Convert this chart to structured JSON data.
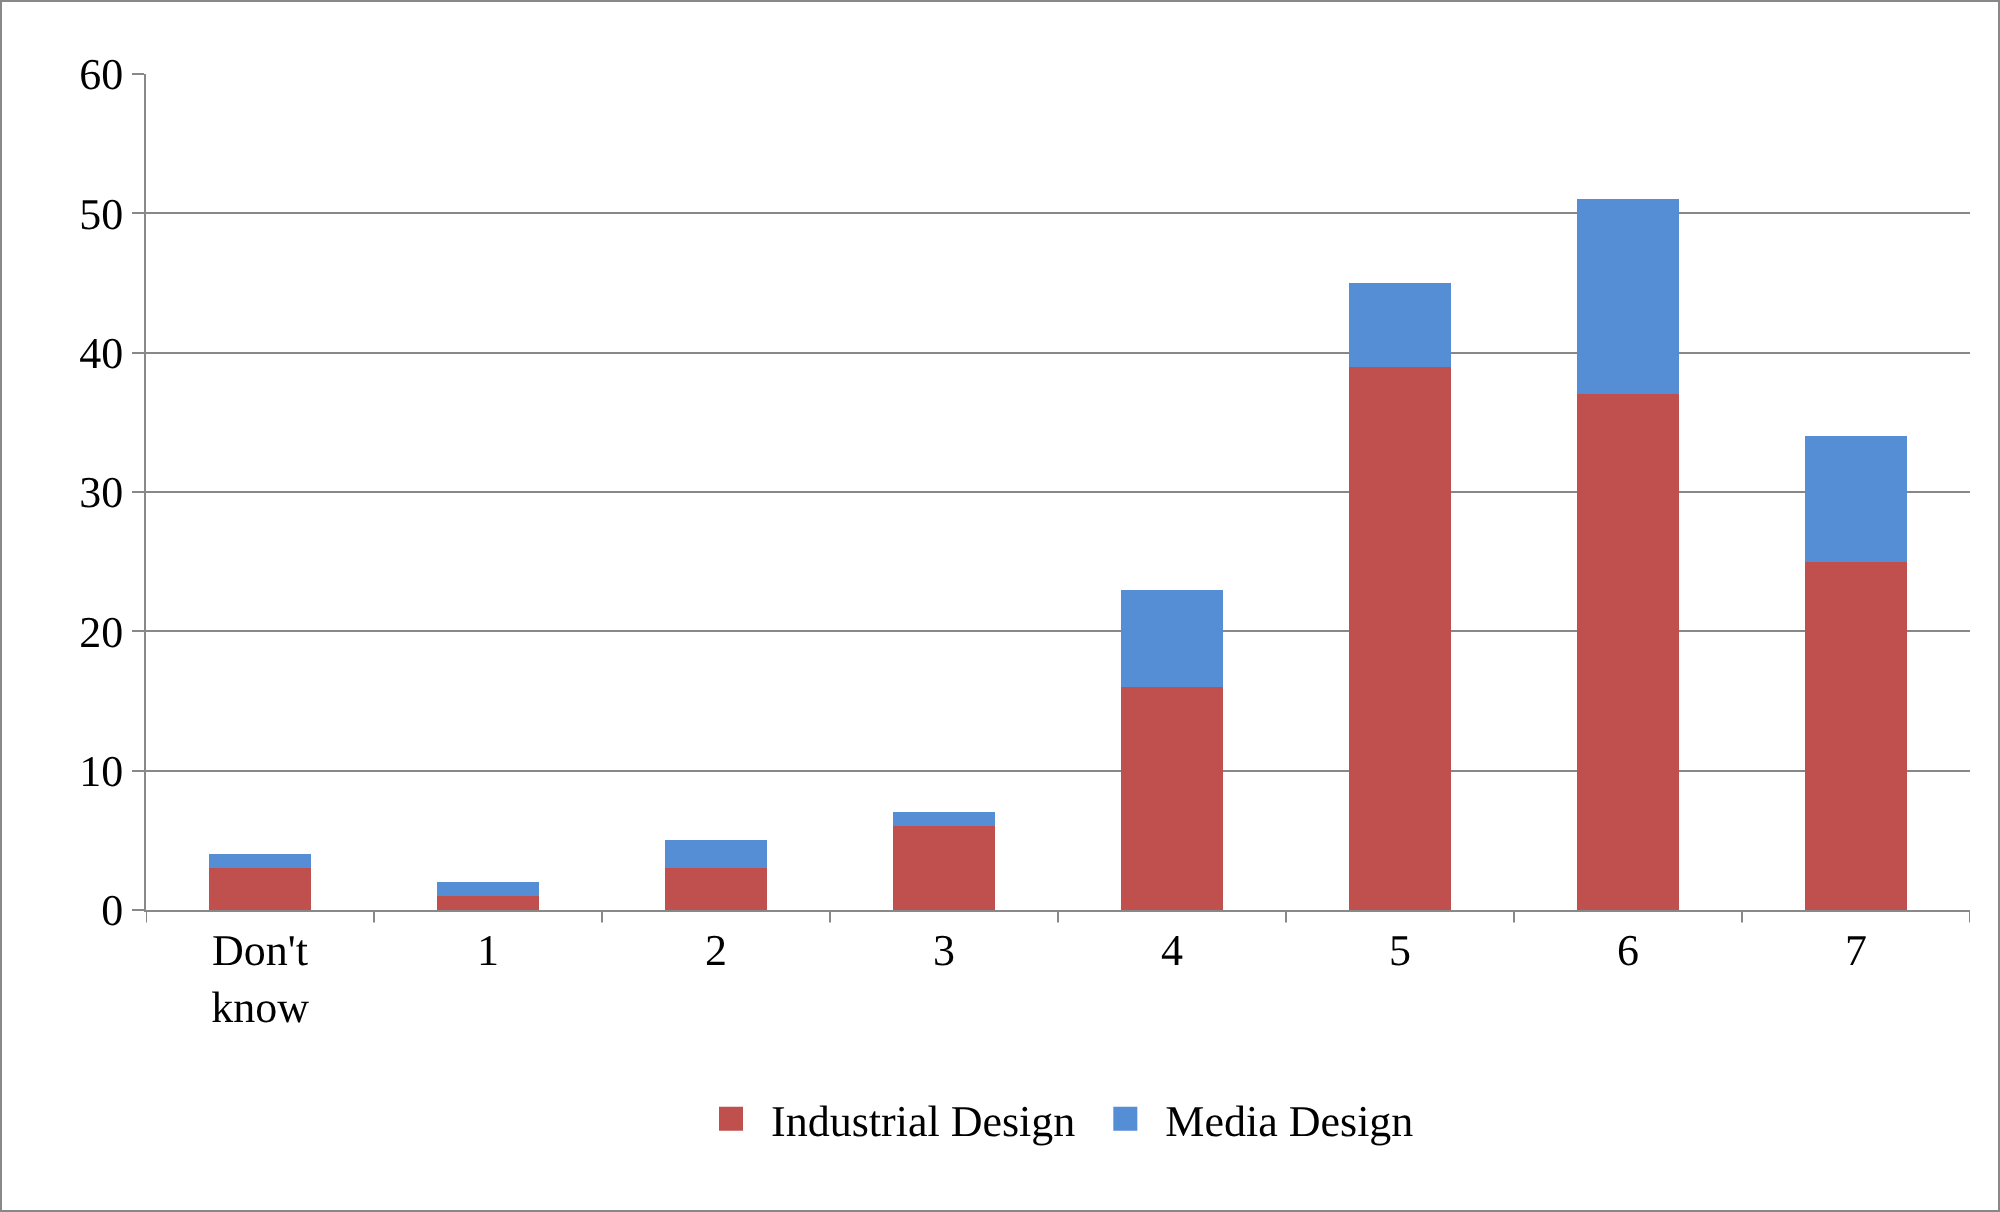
{
  "chart_data": {
    "type": "bar",
    "stacked": true,
    "categories": [
      "Don't know",
      "1",
      "2",
      "3",
      "4",
      "5",
      "6",
      "7"
    ],
    "series": [
      {
        "name": "Industrial Design",
        "color": "#c0504d",
        "values": [
          3,
          1,
          3,
          6,
          16,
          39,
          37,
          25
        ]
      },
      {
        "name": "Media Design",
        "color": "#558ed5",
        "values": [
          1,
          1,
          2,
          1,
          7,
          6,
          14,
          9
        ]
      }
    ],
    "ylim": [
      0,
      60
    ],
    "yticks": [
      0,
      10,
      20,
      30,
      40,
      50,
      60
    ],
    "grid": "y",
    "legend": "bottom"
  }
}
